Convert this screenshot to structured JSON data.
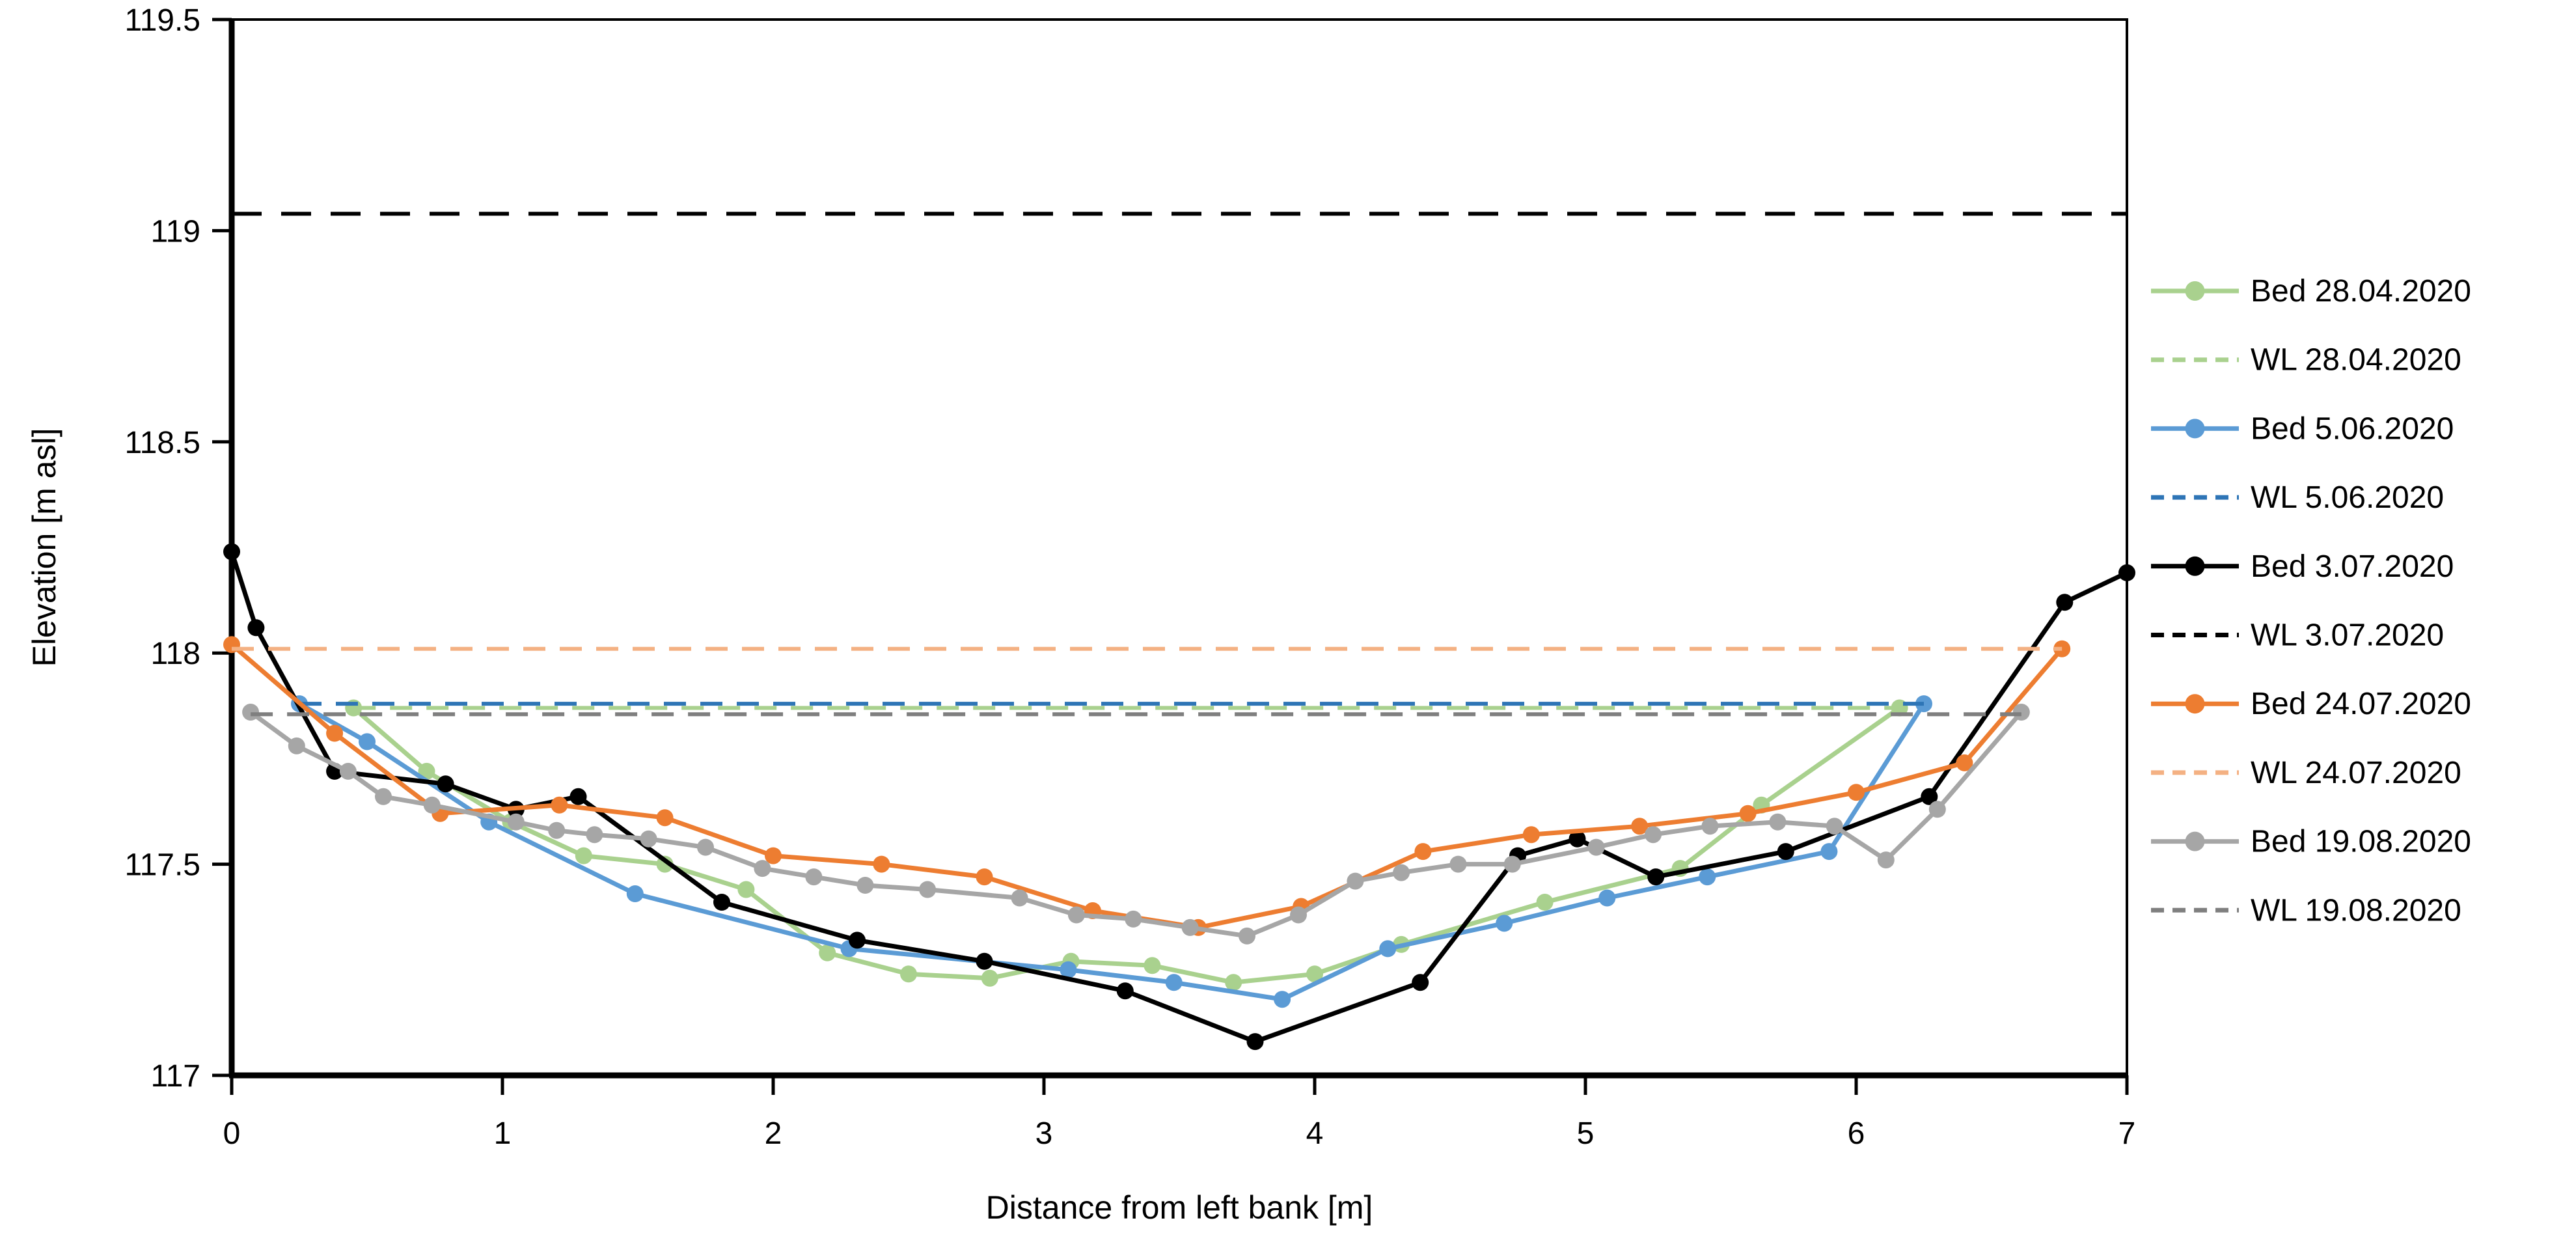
{
  "chart_data": {
    "type": "line",
    "title": "",
    "xlabel": "Distance from left bank [m]",
    "ylabel": "Elevation [m asl]",
    "xlim": [
      0,
      7
    ],
    "ylim": [
      117,
      119.5
    ],
    "x_ticks": [
      "0",
      "1",
      "2",
      "3",
      "4",
      "5",
      "6",
      "7"
    ],
    "y_ticks": [
      "117",
      "117.5",
      "118",
      "118.5",
      "119",
      "119.5"
    ],
    "grid": false,
    "legend_position": "right",
    "series": [
      {
        "name": "Bed 28.04.2020",
        "kind": "bed",
        "color": "#A9D18E",
        "dashed": false,
        "marker": true,
        "points": [
          [
            0.45,
            117.87
          ],
          [
            0.72,
            117.72
          ],
          [
            1.03,
            117.6
          ],
          [
            1.3,
            117.52
          ],
          [
            1.6,
            117.5
          ],
          [
            1.9,
            117.44
          ],
          [
            2.2,
            117.29
          ],
          [
            2.5,
            117.24
          ],
          [
            2.8,
            117.23
          ],
          [
            3.1,
            117.27
          ],
          [
            3.4,
            117.26
          ],
          [
            3.7,
            117.22
          ],
          [
            4.0,
            117.24
          ],
          [
            4.32,
            117.31
          ],
          [
            4.85,
            117.41
          ],
          [
            5.35,
            117.49
          ],
          [
            5.65,
            117.64
          ],
          [
            6.16,
            117.87
          ]
        ]
      },
      {
        "name": "WL 28.04.2020",
        "kind": "water-level",
        "color": "#A9D18E",
        "dashed": true,
        "marker": false,
        "level": 117.87,
        "points": [
          [
            0.45,
            117.87
          ],
          [
            6.16,
            117.87
          ]
        ]
      },
      {
        "name": "Bed 5.06.2020",
        "kind": "bed",
        "color": "#5B9BD5",
        "dashed": false,
        "marker": true,
        "points": [
          [
            0.25,
            117.88
          ],
          [
            0.5,
            117.79
          ],
          [
            0.95,
            117.6
          ],
          [
            1.49,
            117.43
          ],
          [
            2.28,
            117.3
          ],
          [
            3.09,
            117.25
          ],
          [
            3.48,
            117.22
          ],
          [
            3.88,
            117.18
          ],
          [
            4.27,
            117.3
          ],
          [
            4.7,
            117.36
          ],
          [
            5.08,
            117.42
          ],
          [
            5.45,
            117.47
          ],
          [
            5.9,
            117.53
          ],
          [
            6.25,
            117.88
          ]
        ]
      },
      {
        "name": "WL 5.06.2020",
        "kind": "water-level",
        "color": "#2E75B6",
        "dashed": true,
        "marker": false,
        "level": 117.88,
        "points": [
          [
            0.25,
            117.88
          ],
          [
            6.25,
            117.88
          ]
        ]
      },
      {
        "name": "Bed 3.07.2020",
        "kind": "bed",
        "color": "#000000",
        "dashed": false,
        "marker": true,
        "points": [
          [
            0.0,
            118.24
          ],
          [
            0.09,
            118.06
          ],
          [
            0.38,
            117.72
          ],
          [
            0.79,
            117.69
          ],
          [
            1.05,
            117.63
          ],
          [
            1.28,
            117.66
          ],
          [
            1.81,
            117.41
          ],
          [
            2.31,
            117.32
          ],
          [
            2.78,
            117.27
          ],
          [
            3.3,
            117.2
          ],
          [
            3.78,
            117.08
          ],
          [
            4.39,
            117.22
          ],
          [
            4.75,
            117.52
          ],
          [
            4.97,
            117.56
          ],
          [
            5.26,
            117.47
          ],
          [
            5.74,
            117.53
          ],
          [
            6.27,
            117.66
          ],
          [
            6.77,
            118.12
          ],
          [
            7.0,
            118.19
          ]
        ]
      },
      {
        "name": "WL 3.07.2020",
        "kind": "water-level",
        "color": "#000000",
        "dashed": true,
        "marker": false,
        "level": 119.04,
        "points": [
          [
            0.0,
            119.04
          ],
          [
            7.0,
            119.04
          ]
        ]
      },
      {
        "name": "Bed 24.07.2020",
        "kind": "bed",
        "color": "#ED7D31",
        "dashed": false,
        "marker": true,
        "points": [
          [
            0.0,
            118.02
          ],
          [
            0.38,
            117.81
          ],
          [
            0.77,
            117.62
          ],
          [
            1.21,
            117.64
          ],
          [
            1.6,
            117.61
          ],
          [
            2.0,
            117.52
          ],
          [
            2.4,
            117.5
          ],
          [
            2.78,
            117.47
          ],
          [
            3.18,
            117.39
          ],
          [
            3.57,
            117.35
          ],
          [
            3.95,
            117.4
          ],
          [
            4.4,
            117.53
          ],
          [
            4.8,
            117.57
          ],
          [
            5.2,
            117.59
          ],
          [
            5.6,
            117.62
          ],
          [
            6.0,
            117.67
          ],
          [
            6.4,
            117.74
          ],
          [
            6.76,
            118.01
          ]
        ]
      },
      {
        "name": "WL 24.07.2020",
        "kind": "water-level",
        "color": "#F4B183",
        "dashed": true,
        "marker": false,
        "level": 118.01,
        "points": [
          [
            0.0,
            118.01
          ],
          [
            6.76,
            118.01
          ]
        ]
      },
      {
        "name": "Bed 19.08.2020",
        "kind": "bed",
        "color": "#A6A6A6",
        "dashed": false,
        "marker": true,
        "points": [
          [
            0.07,
            117.86
          ],
          [
            0.24,
            117.78
          ],
          [
            0.43,
            117.72
          ],
          [
            0.56,
            117.66
          ],
          [
            0.74,
            117.64
          ],
          [
            1.05,
            117.6
          ],
          [
            1.2,
            117.58
          ],
          [
            1.34,
            117.57
          ],
          [
            1.54,
            117.56
          ],
          [
            1.75,
            117.54
          ],
          [
            1.96,
            117.49
          ],
          [
            2.15,
            117.47
          ],
          [
            2.34,
            117.45
          ],
          [
            2.57,
            117.44
          ],
          [
            2.91,
            117.42
          ],
          [
            3.12,
            117.38
          ],
          [
            3.33,
            117.37
          ],
          [
            3.54,
            117.35
          ],
          [
            3.75,
            117.33
          ],
          [
            3.94,
            117.38
          ],
          [
            4.15,
            117.46
          ],
          [
            4.32,
            117.48
          ],
          [
            4.53,
            117.5
          ],
          [
            4.73,
            117.5
          ],
          [
            5.04,
            117.54
          ],
          [
            5.25,
            117.57
          ],
          [
            5.46,
            117.59
          ],
          [
            5.71,
            117.6
          ],
          [
            5.92,
            117.59
          ],
          [
            6.11,
            117.51
          ],
          [
            6.3,
            117.63
          ],
          [
            6.61,
            117.86
          ]
        ]
      },
      {
        "name": "WL 19.08.2020",
        "kind": "water-level",
        "color": "#7F7F7F",
        "dashed": true,
        "marker": false,
        "level": 117.855,
        "points": [
          [
            0.07,
            117.855
          ],
          [
            6.61,
            117.855
          ]
        ]
      }
    ]
  }
}
